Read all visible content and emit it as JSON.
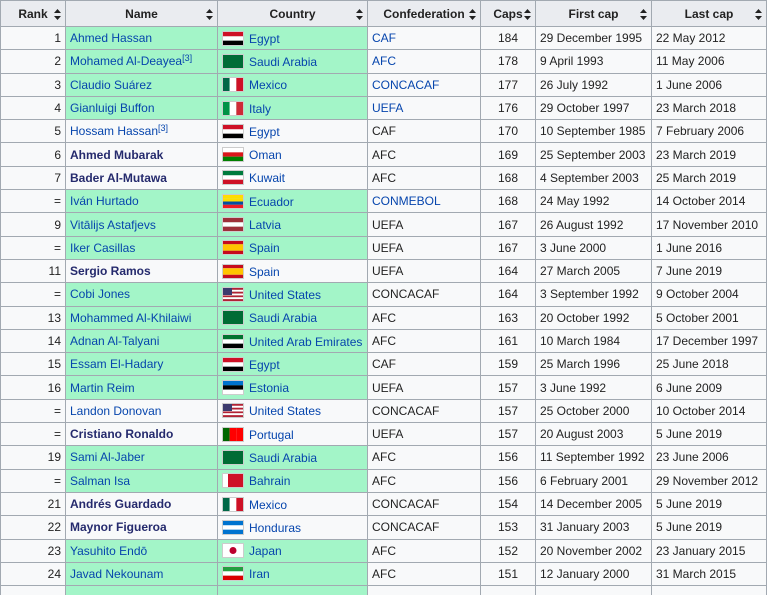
{
  "table": {
    "header": [
      "Rank",
      "Name",
      "Country",
      "Confederation",
      "Caps",
      "First cap",
      "Last cap"
    ],
    "rows": [
      {
        "rank": 1,
        "name": "Ahmed Hassan",
        "country": "Egypt",
        "confederation": "CAF",
        "caps": 184,
        "first_cap": "29 December 1995",
        "last_cap": "22 May 2012"
      },
      {
        "rank": 2,
        "name": "Mohamed Al-Deayea",
        "note": "[3]",
        "country": "Saudi Arabia",
        "confederation": "AFC",
        "caps": 178,
        "first_cap": "9 April 1993",
        "last_cap": "11 May 2006"
      },
      {
        "rank": 3,
        "name": "Claudio Suárez",
        "country": "Mexico",
        "confederation": "CONCACAF",
        "caps": 177,
        "first_cap": "26 July 1992",
        "last_cap": "1 June 2006"
      },
      {
        "rank": 4,
        "name": "Gianluigi Buffon",
        "country": "Italy",
        "confederation": "UEFA",
        "caps": 176,
        "first_cap": "29 October 1997",
        "last_cap": "23 March 2018"
      },
      {
        "rank": 5,
        "name": "Hossam Hassan",
        "note": "[3]",
        "country": "Egypt",
        "confederation": "CAF",
        "caps": 170,
        "first_cap": "10 September 1985",
        "last_cap": "7 February 2006"
      },
      {
        "rank": 6,
        "name": "Ahmed Mubarak",
        "country": "Oman",
        "confederation": "AFC",
        "caps": 169,
        "first_cap": "25 September 2003",
        "last_cap": "23 March 2019"
      },
      {
        "rank": 7,
        "name": "Bader Al-Mutawa",
        "country": "Kuwait",
        "confederation": "AFC",
        "caps": 168,
        "first_cap": "4 September 2003",
        "last_cap": "25 March 2019"
      },
      {
        "rank": "=",
        "name": "Iván Hurtado",
        "country": "Ecuador",
        "confederation": "CONMEBOL",
        "caps": 168,
        "first_cap": "24 May 1992",
        "last_cap": "14 October 2014"
      },
      {
        "rank": 9,
        "name": "Vitālijs Astafjevs",
        "country": "Latvia",
        "confederation": "UEFA",
        "caps": 167,
        "first_cap": "26 August 1992",
        "last_cap": "17 November 2010"
      },
      {
        "rank": "=",
        "name": "Iker Casillas",
        "country": "Spain",
        "confederation": "UEFA",
        "caps": 167,
        "first_cap": "3 June 2000",
        "last_cap": "1 June 2016"
      },
      {
        "rank": 11,
        "name": "Sergio Ramos",
        "country": "Spain",
        "confederation": "UEFA",
        "caps": 164,
        "first_cap": "27 March 2005",
        "last_cap": "7 June 2019"
      },
      {
        "rank": "=",
        "name": "Cobi Jones",
        "country": "United States",
        "confederation": "CONCACAF",
        "caps": 164,
        "first_cap": "3 September 1992",
        "last_cap": "9 October 2004"
      },
      {
        "rank": 13,
        "name": "Mohammed Al-Khilaiwi",
        "country": "Saudi Arabia",
        "confederation": "AFC",
        "caps": 163,
        "first_cap": "20 October 1992",
        "last_cap": "5 October 2001"
      },
      {
        "rank": 14,
        "name": "Adnan Al-Talyani",
        "country": "United Arab Emirates",
        "confederation": "AFC",
        "caps": 161,
        "first_cap": "10 March 1984",
        "last_cap": "17 December 1997"
      },
      {
        "rank": 15,
        "name": "Essam El-Hadary",
        "country": "Egypt",
        "confederation": "CAF",
        "caps": 159,
        "first_cap": "25 March 1996",
        "last_cap": "25 June 2018"
      },
      {
        "rank": 16,
        "name": "Martin Reim",
        "country": "Estonia",
        "confederation": "UEFA",
        "caps": 157,
        "first_cap": "3 June 1992",
        "last_cap": "6 June 2009"
      },
      {
        "rank": "=",
        "name": "Landon Donovan",
        "country": "United States",
        "confederation": "CONCACAF",
        "caps": 157,
        "first_cap": "25 October 2000",
        "last_cap": "10 October 2014"
      },
      {
        "rank": "=",
        "name": "Cristiano Ronaldo",
        "country": "Portugal",
        "confederation": "UEFA",
        "caps": 157,
        "first_cap": "20 August 2003",
        "last_cap": "5 June 2019"
      },
      {
        "rank": 19,
        "name": "Sami Al-Jaber",
        "country": "Saudi Arabia",
        "confederation": "AFC",
        "caps": 156,
        "first_cap": "11 September 1992",
        "last_cap": "23 June 2006"
      },
      {
        "rank": "=",
        "name": "Salman Isa",
        "country": "Bahrain",
        "confederation": "AFC",
        "caps": 156,
        "first_cap": "6 February 2001",
        "last_cap": "29 November 2012"
      },
      {
        "rank": 21,
        "name": "Andrés Guardado",
        "country": "Mexico",
        "confederation": "CONCACAF",
        "caps": 154,
        "first_cap": "14 December 2005",
        "last_cap": "5 June 2019"
      },
      {
        "rank": 22,
        "name": "Maynor Figueroa",
        "country": "Honduras",
        "confederation": "CONCACAF",
        "caps": 153,
        "first_cap": "31 January 2003",
        "last_cap": "5 June 2019"
      },
      {
        "rank": 23,
        "name": "Yasuhito Endō",
        "country": "Japan",
        "confederation": "AFC",
        "caps": 152,
        "first_cap": "20 November 2002",
        "last_cap": "23 January 2015"
      },
      {
        "rank": 24,
        "name": "Javad Nekounam",
        "country": "Iran",
        "confederation": "AFC",
        "caps": 151,
        "first_cap": "12 January 2000",
        "last_cap": "31 March 2015"
      }
    ]
  }
}
